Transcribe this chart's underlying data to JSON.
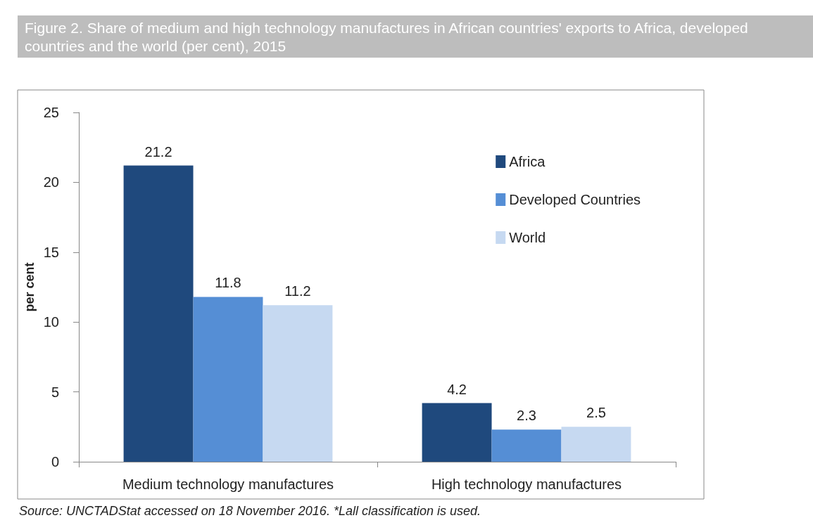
{
  "chart_data": {
    "type": "bar",
    "title": "Figure 2. Share of medium and high technology manufactures in African countries' exports to Africa, developed countries and the world (per cent), 2015",
    "ylabel": "per cent",
    "categories": [
      "Medium technology manufactures",
      "High technology manufactures"
    ],
    "series": [
      {
        "name": "Africa",
        "color": "#1f497d",
        "values": [
          21.2,
          4.2
        ]
      },
      {
        "name": "Developed Countries",
        "color": "#558ed5",
        "values": [
          11.8,
          2.3
        ]
      },
      {
        "name": "World",
        "color": "#c6d9f1",
        "values": [
          11.2,
          2.5
        ]
      }
    ],
    "ylim": [
      0,
      25
    ],
    "yticks": [
      0,
      5,
      10,
      15,
      20,
      25
    ],
    "grid": false,
    "legend": "top right",
    "data_labels": true,
    "annotations": [
      "Source: UNCTADStat accessed on 18 November 2016. *Lall classification is used."
    ]
  }
}
